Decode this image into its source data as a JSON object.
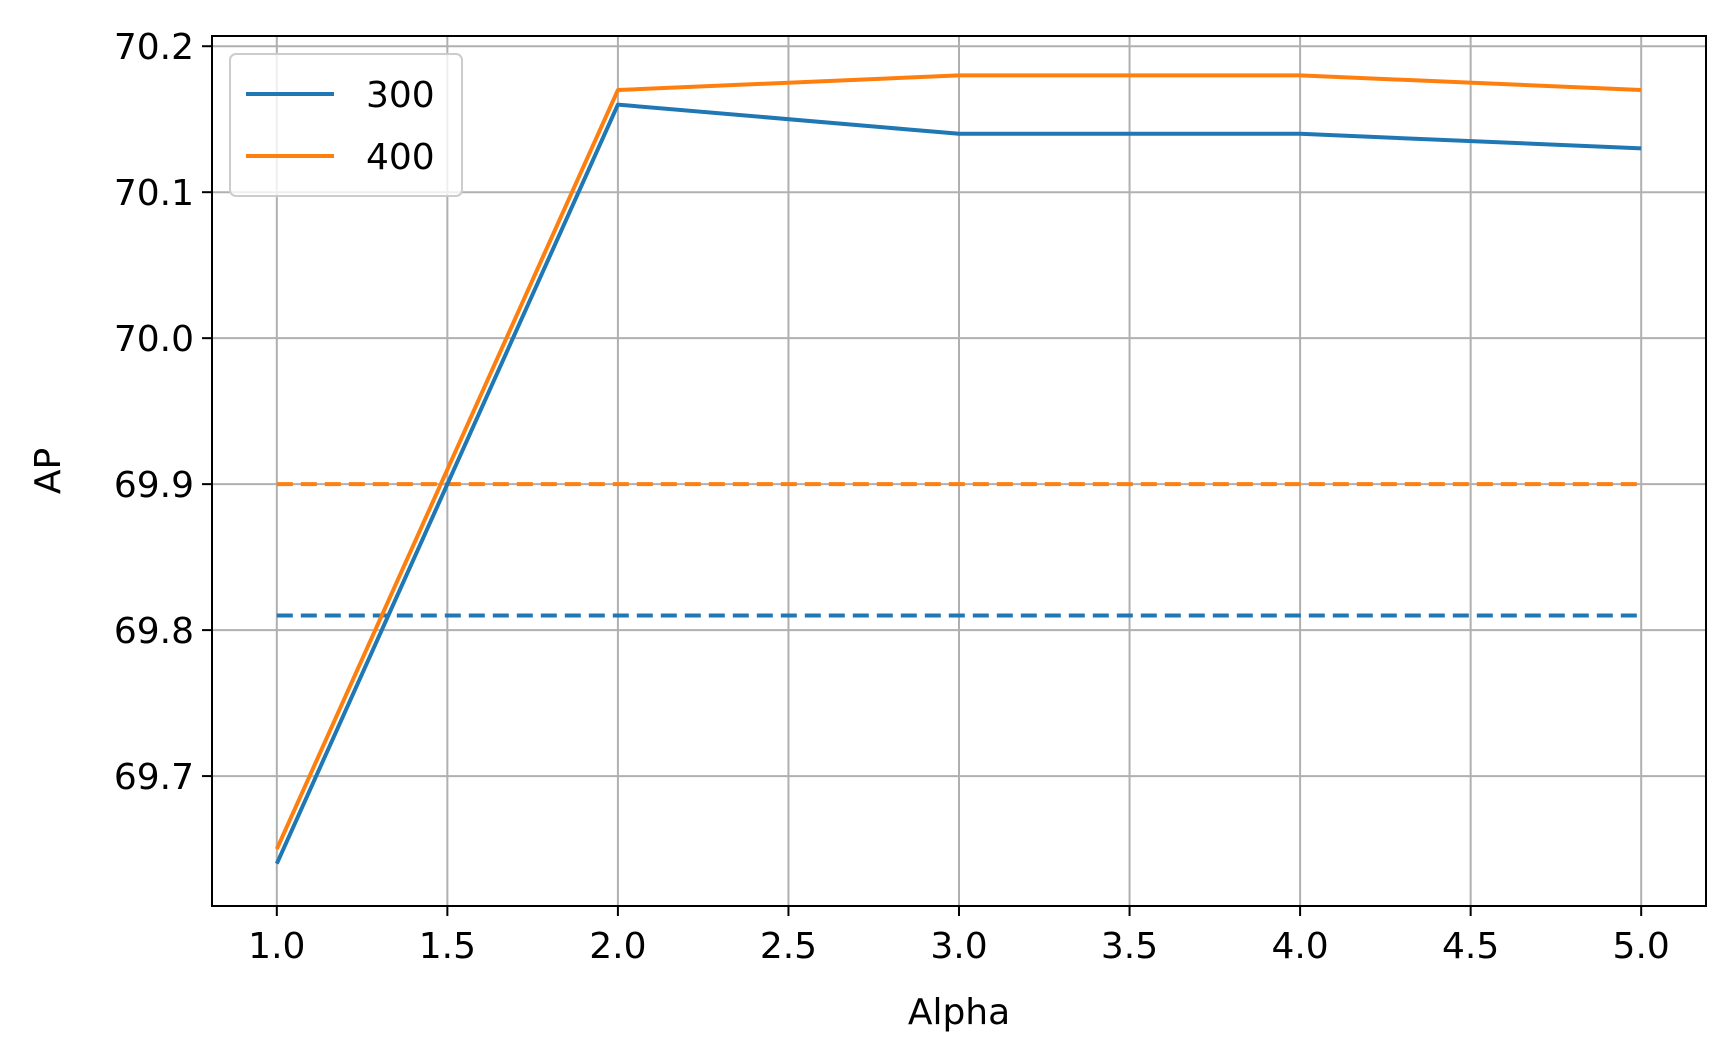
{
  "chart_data": {
    "type": "line",
    "title": "",
    "xlabel": "Alpha",
    "ylabel": "AP",
    "x": [
      1.0,
      2.0,
      3.0,
      4.0,
      5.0
    ],
    "xlim": [
      0.81,
      5.19
    ],
    "ylim": [
      69.611,
      70.207
    ],
    "xticks": [
      "1.0",
      "1.5",
      "2.0",
      "2.5",
      "3.0",
      "3.5",
      "4.0",
      "4.5",
      "5.0"
    ],
    "yticks": [
      "69.7",
      "69.8",
      "69.9",
      "70.0",
      "70.1",
      "70.2"
    ],
    "grid": true,
    "legend_position": "upper-left",
    "series": [
      {
        "name": "300",
        "color": "#1f77b4",
        "style": "solid",
        "values": [
          69.64,
          70.16,
          70.14,
          70.14,
          70.13
        ]
      },
      {
        "name": "400",
        "color": "#ff7f0e",
        "style": "solid",
        "values": [
          69.65,
          70.17,
          70.18,
          70.18,
          70.17
        ]
      }
    ],
    "reference_lines": [
      {
        "series": "300",
        "color": "#1f77b4",
        "style": "dashed",
        "y": 69.81,
        "x_range": [
          1.0,
          5.0
        ]
      },
      {
        "series": "400",
        "color": "#ff7f0e",
        "style": "dashed",
        "y": 69.9,
        "x_range": [
          1.0,
          5.0
        ]
      }
    ]
  }
}
